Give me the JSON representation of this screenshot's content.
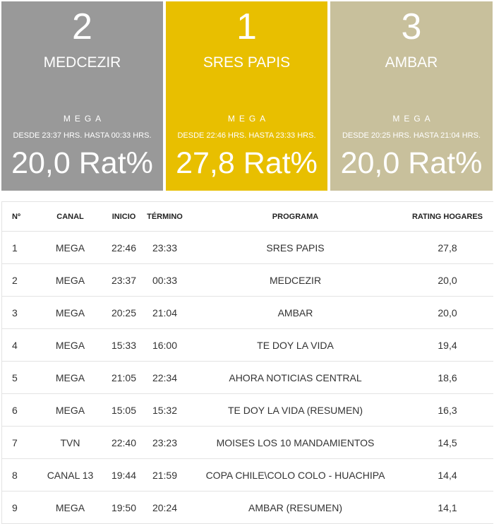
{
  "podium": [
    {
      "rank": "2",
      "name": "MEDCEZIR",
      "channel": "MEGA",
      "time": "DESDE 23:37 HRS. HASTA 00:33 HRS.",
      "rating": "20,0 Rat%",
      "color": "#999999"
    },
    {
      "rank": "1",
      "name": "SRES PAPIS",
      "channel": "MEGA",
      "time": "DESDE 22:46 HRS. HASTA 23:33 HRS.",
      "rating": "27,8 Rat%",
      "color": "#e8bf00"
    },
    {
      "rank": "3",
      "name": "AMBAR",
      "channel": "MEGA",
      "time": "DESDE 20:25 HRS. HASTA 21:04 HRS.",
      "rating": "20,0 Rat%",
      "color": "#c8c09c"
    }
  ],
  "table": {
    "headers": {
      "num": "Nº",
      "channel": "CANAL",
      "start": "INICIO",
      "end": "TÉRMINO",
      "program": "PROGRAMA",
      "rating": "RATING HOGARES"
    },
    "rows": [
      {
        "num": "1",
        "channel": "MEGA",
        "start": "22:46",
        "end": "23:33",
        "program": "SRES PAPIS",
        "rating": "27,8"
      },
      {
        "num": "2",
        "channel": "MEGA",
        "start": "23:37",
        "end": "00:33",
        "program": "MEDCEZIR",
        "rating": "20,0"
      },
      {
        "num": "3",
        "channel": "MEGA",
        "start": "20:25",
        "end": "21:04",
        "program": "AMBAR",
        "rating": "20,0"
      },
      {
        "num": "4",
        "channel": "MEGA",
        "start": "15:33",
        "end": "16:00",
        "program": "TE DOY LA VIDA",
        "rating": "19,4"
      },
      {
        "num": "5",
        "channel": "MEGA",
        "start": "21:05",
        "end": "22:34",
        "program": "AHORA NOTICIAS CENTRAL",
        "rating": "18,6"
      },
      {
        "num": "6",
        "channel": "MEGA",
        "start": "15:05",
        "end": "15:32",
        "program": "TE DOY LA VIDA (RESUMEN)",
        "rating": "16,3"
      },
      {
        "num": "7",
        "channel": "TVN",
        "start": "22:40",
        "end": "23:23",
        "program": "MOISES LOS 10 MANDAMIENTOS",
        "rating": "14,5"
      },
      {
        "num": "8",
        "channel": "CANAL 13",
        "start": "19:44",
        "end": "21:59",
        "program": "COPA CHILE\\COLO COLO - HUACHIPA",
        "rating": "14,4"
      },
      {
        "num": "9",
        "channel": "MEGA",
        "start": "19:50",
        "end": "20:24",
        "program": "AMBAR (RESUMEN)",
        "rating": "14,1"
      }
    ]
  }
}
